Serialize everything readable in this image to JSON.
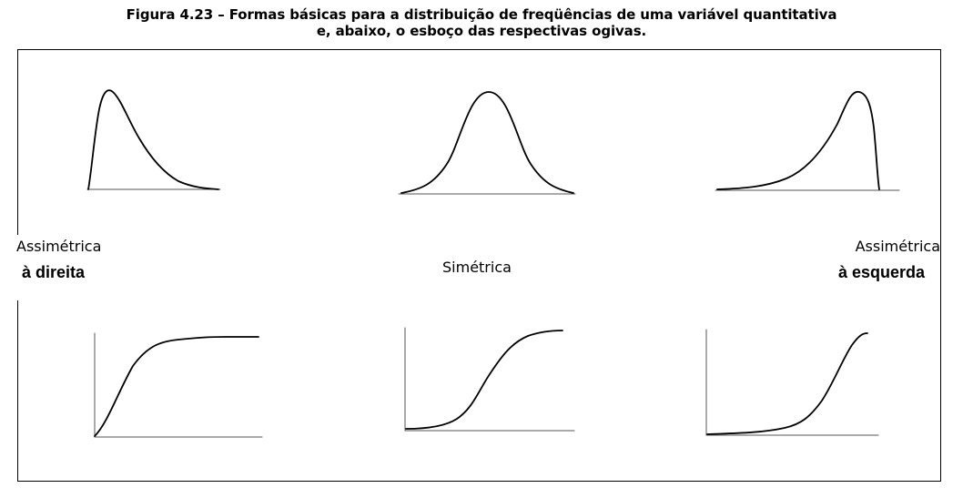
{
  "caption": {
    "line1": "Figura 4.23 – Formas básicas para a distribuição de freqüências de uma variável quantitativa",
    "line2": "e, abaixo, o esboço das respectivas ogivas."
  },
  "labels": {
    "right_skew_line1": "Assimétrica",
    "right_skew_line2": "à  direita",
    "symmetric": "Simétrica",
    "left_skew_line1": "Assimétrica",
    "left_skew_line2": "à  esquerda"
  },
  "shapes": [
    {
      "name": "distribution-right-skewed",
      "kind": "frequency-distribution",
      "skew": "right"
    },
    {
      "name": "distribution-symmetric",
      "kind": "frequency-distribution",
      "skew": "none"
    },
    {
      "name": "distribution-left-skewed",
      "kind": "frequency-distribution",
      "skew": "left"
    },
    {
      "name": "ogive-right-skewed",
      "kind": "ogive",
      "skew": "right"
    },
    {
      "name": "ogive-symmetric",
      "kind": "ogive",
      "skew": "none"
    },
    {
      "name": "ogive-left-skewed",
      "kind": "ogive",
      "skew": "left"
    }
  ],
  "colors": {
    "line": "#000000",
    "axis": "#555555",
    "background": "#ffffff"
  }
}
